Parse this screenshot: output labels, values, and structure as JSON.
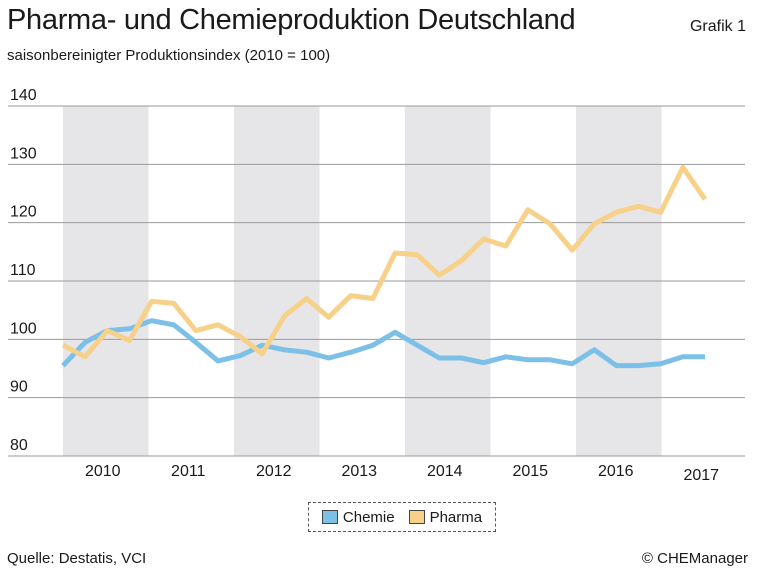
{
  "header": {
    "title": "Pharma- und Chemieproduktion Deutschland",
    "subtitle": "saisonbereinigter Produktionsindex (2010 = 100)",
    "grafik": "Grafik 1"
  },
  "footer": {
    "source": "Quelle: Destatis, VCI",
    "copyright": "© CHEManager"
  },
  "chart_data": {
    "type": "line",
    "title": "Pharma- und Chemieproduktion Deutschland",
    "subtitle": "saisonbereinigter Produktionsindex (2010 = 100)",
    "xlabel": "",
    "ylabel": "",
    "ylim": [
      80,
      140
    ],
    "yticks": [
      80,
      90,
      100,
      110,
      120,
      130,
      140
    ],
    "year_labels": [
      "2010",
      "2011",
      "2012",
      "2013",
      "2014",
      "2015",
      "2016",
      "2017"
    ],
    "shaded_years": [
      "2010",
      "2012",
      "2014",
      "2016"
    ],
    "grid": true,
    "legend_position": "bottom-center",
    "x_quarters": [
      "2010 Q1",
      "2010 Q2",
      "2010 Q3",
      "2010 Q4",
      "2011 Q1",
      "2011 Q2",
      "2011 Q3",
      "2011 Q4",
      "2012 Q1",
      "2012 Q2",
      "2012 Q3",
      "2012 Q4",
      "2013 Q1",
      "2013 Q2",
      "2013 Q3",
      "2013 Q4",
      "2014 Q1",
      "2014 Q2",
      "2014 Q3",
      "2014 Q4",
      "2015 Q1",
      "2015 Q2",
      "2015 Q3",
      "2015 Q4",
      "2016 Q1",
      "2016 Q2",
      "2016 Q3",
      "2016 Q4",
      "2017 Q1",
      "2017 Q2"
    ],
    "series": [
      {
        "name": "Chemie",
        "color": "#7cc0e8",
        "values": [
          95.5,
          99.5,
          101.5,
          101.8,
          103.2,
          102.5,
          99.5,
          96.3,
          97.2,
          99.0,
          98.2,
          97.8,
          96.8,
          97.8,
          99.0,
          101.2,
          99.0,
          96.8,
          96.8,
          96.0,
          97.0,
          96.5,
          96.5,
          95.8,
          98.2,
          95.5,
          95.5,
          95.8,
          97.0,
          97.0
        ]
      },
      {
        "name": "Pharma",
        "color": "#f7d08a",
        "values": [
          99.0,
          97.0,
          101.5,
          99.8,
          106.5,
          106.2,
          101.5,
          102.5,
          100.5,
          97.5,
          104.0,
          107.0,
          103.8,
          107.5,
          107.0,
          114.8,
          114.5,
          111.0,
          113.5,
          117.2,
          116.0,
          122.2,
          119.8,
          115.3,
          119.8,
          121.8,
          122.8,
          121.8,
          129.5,
          124.0
        ]
      }
    ]
  }
}
